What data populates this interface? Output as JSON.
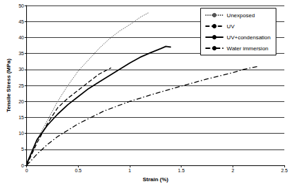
{
  "chart_data": {
    "type": "line",
    "x_label": "Strain (%)",
    "y_label": "Tensile Stress (MPa)",
    "xlim": [
      0,
      2.5
    ],
    "xticks": [
      0,
      0.5,
      1,
      1.5,
      2,
      2.5
    ],
    "ylim": [
      0,
      50
    ],
    "yticks": [
      0,
      5,
      10,
      15,
      20,
      25,
      30,
      35,
      40,
      45,
      50
    ],
    "grid": true,
    "legend": "top right",
    "series": [
      {
        "name": "Unexposed",
        "color": "#555555",
        "line_style": "dotted",
        "x": [
          0,
          0.1,
          0.2,
          0.3,
          0.4,
          0.5,
          0.6,
          0.7,
          0.8,
          0.9,
          1.0,
          1.1,
          1.18
        ],
        "values": [
          0,
          8,
          14,
          20,
          25,
          29.5,
          33,
          36.5,
          39.5,
          42,
          44,
          46.3,
          47.7
        ]
      },
      {
        "name": "UV",
        "color": "#000000",
        "line_style": "dashed",
        "x": [
          0,
          0.1,
          0.2,
          0.3,
          0.4,
          0.5,
          0.6,
          0.7,
          0.8,
          0.82
        ],
        "values": [
          0,
          7,
          13,
          18,
          21,
          23.5,
          26,
          28.5,
          30.2,
          30.5
        ]
      },
      {
        "name": "UV+condensation",
        "color": "#000000",
        "line_style": "solid",
        "x": [
          0,
          0.1,
          0.2,
          0.3,
          0.4,
          0.5,
          0.6,
          0.7,
          0.8,
          0.9,
          1.0,
          1.1,
          1.2,
          1.3,
          1.35,
          1.4
        ],
        "values": [
          0.5,
          8,
          12.5,
          16,
          19,
          21.5,
          24,
          26,
          28,
          30,
          32,
          33.8,
          35.2,
          36.5,
          37.2,
          37
        ]
      },
      {
        "name": "Water immersion",
        "color": "#000000",
        "line_style": "dashdot",
        "x": [
          0,
          0.1,
          0.2,
          0.3,
          0.4,
          0.5,
          0.75,
          1.0,
          1.25,
          1.5,
          1.75,
          2.0,
          2.1,
          2.25
        ],
        "values": [
          0,
          3.5,
          6.5,
          9,
          11,
          13,
          17,
          20,
          22.5,
          24.8,
          27,
          29,
          30,
          31
        ]
      }
    ]
  }
}
